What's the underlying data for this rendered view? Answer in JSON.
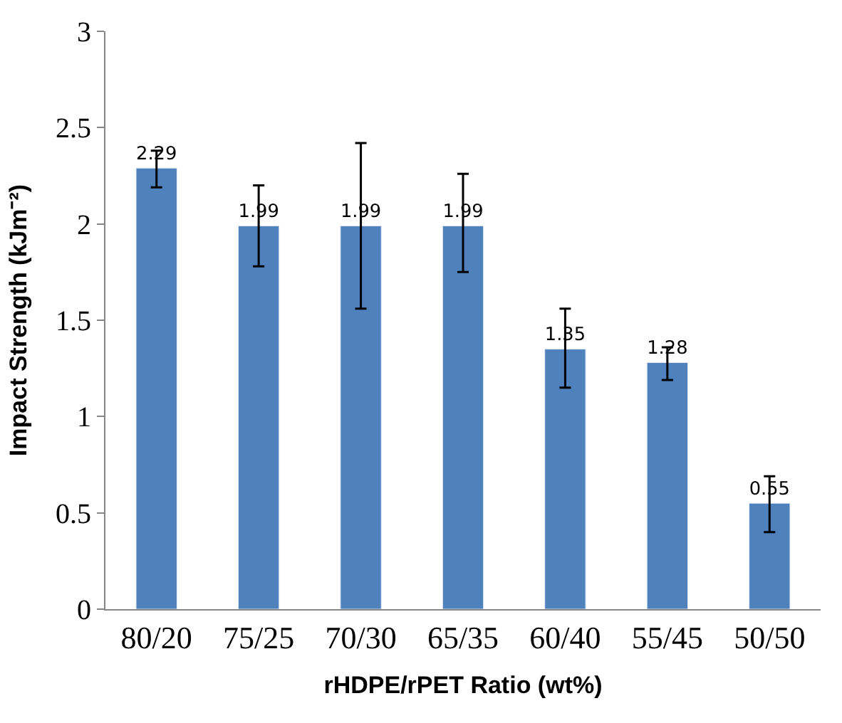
{
  "chart_data": {
    "type": "bar",
    "xlabel": "rHDPE/rPET Ratio (wt%)",
    "ylabel": "Impact Strength (kJm⁻²)",
    "categories": [
      "80/20",
      "75/25",
      "70/30",
      "65/35",
      "60/40",
      "55/45",
      "50/50"
    ],
    "values": [
      2.29,
      1.99,
      1.99,
      1.99,
      1.35,
      1.28,
      0.55
    ],
    "errors": [
      [
        2.19,
        2.38
      ],
      [
        1.78,
        2.2
      ],
      [
        1.56,
        2.42
      ],
      [
        1.75,
        2.26
      ],
      [
        1.15,
        1.56
      ],
      [
        1.19,
        1.36
      ],
      [
        0.4,
        0.69
      ]
    ],
    "color": "#4f81bd",
    "data_labels": true,
    "ylim": [
      0,
      3
    ],
    "yticks": [
      0,
      0.5,
      1,
      1.5,
      2,
      2.5,
      3
    ]
  }
}
